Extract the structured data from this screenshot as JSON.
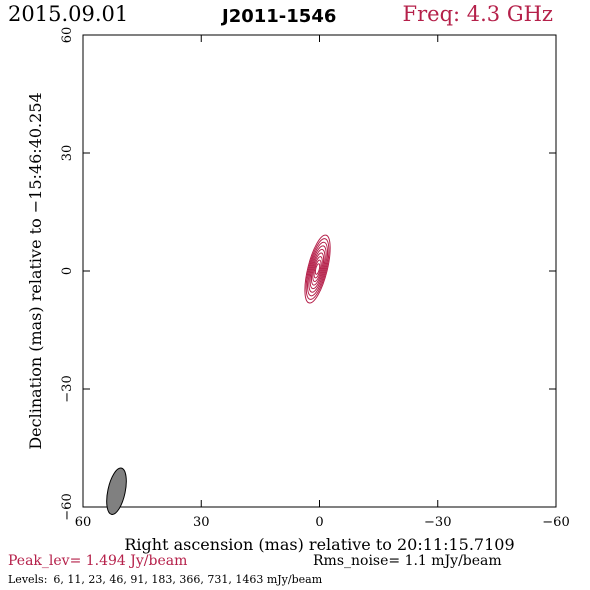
{
  "header": {
    "date": "2015.09.01",
    "source": "J2011-1546",
    "freq": "Freq: 4.3 GHz"
  },
  "footer": {
    "peak": "Peak_lev=  1.494 Jy/beam",
    "rms": "Rms_noise=  1.1 mJy/beam",
    "levels_label": "Levels:",
    "levels": "6,  11,  23,  46,  91, 183, 366, 731, 1463 mJy/beam"
  },
  "chart_data": {
    "type": "contour",
    "xlabel": "Right ascension (mas) relative to 20:11:15.7109",
    "ylabel": "Declination (mas) relative to −15:46:40.254",
    "xlim": [
      60,
      -60
    ],
    "ylim": [
      -60,
      60
    ],
    "xticks": [
      60,
      30,
      0,
      -30,
      -60
    ],
    "yticks": [
      -60,
      -30,
      0,
      30,
      60
    ],
    "xtick_labels": [
      "60",
      "30",
      "0",
      "−30",
      "−60"
    ],
    "ytick_labels": [
      "−60",
      "−30",
      "0",
      "30",
      "60"
    ],
    "contour_color": "#b5204a",
    "contour_levels_mJy": [
      6,
      11,
      23,
      46,
      91,
      183,
      366,
      731,
      1463
    ],
    "peak_Jy_per_beam": 1.494,
    "rms_mJy_per_beam": 1.1,
    "source_center": [
      0.5,
      0.5
    ],
    "beam": {
      "center": [
        51.5,
        -56.0
      ],
      "major": 6.0,
      "minor": 2.2,
      "pa_deg": 12,
      "color": "#808080"
    }
  }
}
